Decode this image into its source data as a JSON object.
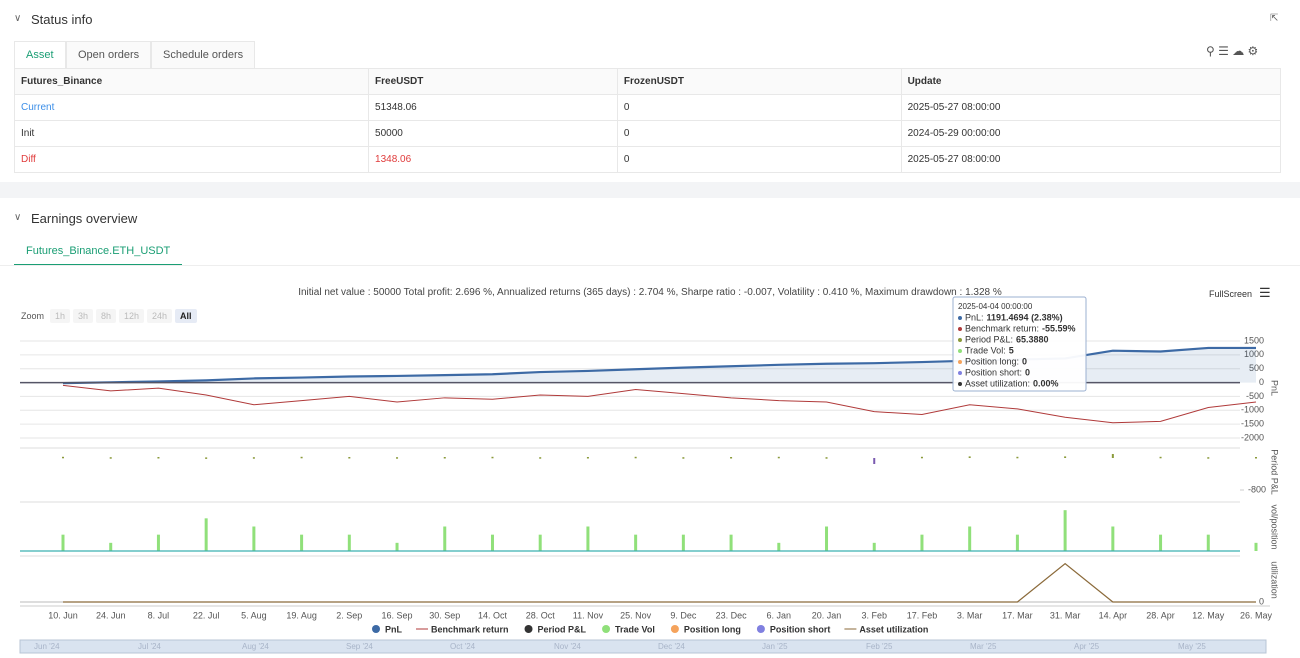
{
  "status_info": {
    "title": "Status info",
    "tabs": [
      "Asset",
      "Open orders",
      "Schedule orders"
    ],
    "table": {
      "header": [
        "Futures_Binance",
        "FreeUSDT",
        "FrozenUSDT",
        "Update"
      ],
      "rows": [
        [
          "Current",
          "51348.06",
          "0",
          "2025-05-27 08:00:00"
        ],
        [
          "Init",
          "50000",
          "0",
          "2024-05-29 00:00:00"
        ],
        [
          "Diff",
          "1348.06",
          "0",
          "2025-05-27 08:00:00"
        ]
      ]
    }
  },
  "earnings_overview": {
    "title": "Earnings overview",
    "tab": "Futures_Binance.ETH_USDT",
    "summary": "Initial net value : 50000 Total profit: 2.696 %, Annualized returns (365 days) : 2.704 %, Sharpe ratio : -0.007, Volatility : 0.410 %, Maximum drawdown : 1.328 %",
    "fullscreen": "FullScreen",
    "zoom_label": "Zoom",
    "zoom_buttons": [
      "1h",
      "3h",
      "8h",
      "12h",
      "24h",
      "All"
    ],
    "chart_data": {
      "type": "line",
      "categories": [
        "10. Jun",
        "24. Jun",
        "8. Jul",
        "22. Jul",
        "5. Aug",
        "19. Aug",
        "2. Sep",
        "16. Sep",
        "30. Sep",
        "14. Oct",
        "28. Oct",
        "11. Nov",
        "25. Nov",
        "9. Dec",
        "23. Dec",
        "6. Jan",
        "20. Jan",
        "3. Feb",
        "17. Feb",
        "3. Mar",
        "17. Mar",
        "31. Mar",
        "14. Apr",
        "28. Apr",
        "12. May",
        "26. May"
      ],
      "ylim": [
        -2000,
        1500
      ],
      "yticks": [
        1500,
        1000,
        500,
        0,
        -500,
        -1000,
        -1500,
        -2000
      ],
      "y_label": "PnL",
      "series": [
        {
          "name": "PnL",
          "color": "#3d6aa5",
          "values": [
            -20,
            10,
            40,
            80,
            150,
            180,
            220,
            240,
            270,
            300,
            380,
            420,
            480,
            540,
            590,
            640,
            680,
            700,
            740,
            790,
            830,
            870,
            1150,
            1120,
            1250,
            1250
          ]
        },
        {
          "name": "Benchmark return",
          "color": "#b03a3a",
          "values": [
            -100,
            -300,
            -200,
            -450,
            -800,
            -650,
            -500,
            -700,
            -550,
            -600,
            -450,
            -500,
            -250,
            -400,
            -550,
            -650,
            -700,
            -1050,
            -1150,
            -800,
            -950,
            -1250,
            -1450,
            -1400,
            -900,
            -700
          ]
        }
      ],
      "period_pnl": {
        "label": "Period P&L",
        "ylim": [
          -1000,
          200
        ],
        "yticks": [
          -800
        ],
        "color": "#8a9a3a",
        "values": [
          30,
          20,
          25,
          15,
          20,
          30,
          25,
          20,
          25,
          30,
          20,
          25,
          30,
          20,
          25,
          30,
          20,
          -150,
          30,
          40,
          30,
          40,
          100,
          30,
          20,
          25
        ]
      },
      "trade_vol": {
        "label": "vol/position",
        "ylim": [
          0,
          6
        ],
        "color": "#90e07a",
        "values": [
          2,
          1,
          2,
          4,
          3,
          2,
          2,
          1,
          3,
          2,
          2,
          3,
          2,
          2,
          2,
          1,
          3,
          1,
          2,
          3,
          2,
          5,
          3,
          2,
          2,
          1
        ]
      },
      "utilization": {
        "label": "utilization",
        "ylim": [
          0,
          1.2
        ],
        "yticks": [
          0
        ],
        "color": "#8b6a3a",
        "values": [
          0,
          0,
          0,
          0,
          0,
          0,
          0,
          0,
          0,
          0,
          0,
          0,
          0,
          0,
          0,
          0,
          0,
          0,
          0,
          0,
          0,
          1,
          0,
          0,
          0,
          0
        ]
      },
      "legend": [
        {
          "name": "PnL",
          "color": "#3d6aa5"
        },
        {
          "name": "Benchmark return",
          "color": "#b03a3a"
        },
        {
          "name": "Period P&L",
          "color": "#333333"
        },
        {
          "name": "Trade Vol",
          "color": "#90e07a"
        },
        {
          "name": "Position long",
          "color": "#f5a35c"
        },
        {
          "name": "Position short",
          "color": "#8080e0"
        },
        {
          "name": "Asset utilization",
          "color": "#8b6a3a"
        }
      ],
      "navigator": [
        "Jun '24",
        "Jul '24",
        "Aug '24",
        "Sep '24",
        "Oct '24",
        "Nov '24",
        "Dec '24",
        "Jan '25",
        "Feb '25",
        "Mar '25",
        "Apr '25",
        "May '25"
      ],
      "tooltip": {
        "date": "2025-04-04 00:00:00",
        "rows": [
          {
            "label": "PnL:",
            "value": "1191.4694 (2.38%)",
            "color": "#3d6aa5"
          },
          {
            "label": "Benchmark return:",
            "value": "-55.59%",
            "color": "#b03a3a"
          },
          {
            "label": "Period P&L:",
            "value": "65.3880",
            "color": "#8a9a3a"
          },
          {
            "label": "Trade Vol:",
            "value": "5",
            "color": "#90e07a"
          },
          {
            "label": "Position long:",
            "value": "0",
            "color": "#f5a35c"
          },
          {
            "label": "Position short:",
            "value": "0",
            "color": "#8080e0"
          },
          {
            "label": "Asset utilization:",
            "value": "0.00%",
            "color": "#333333"
          }
        ]
      }
    }
  }
}
